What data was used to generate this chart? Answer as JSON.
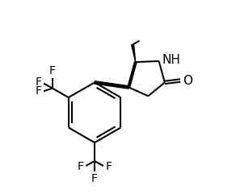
{
  "bg_color": "#ffffff",
  "line_color": "#000000",
  "lw": 1.5,
  "fig_width": 2.92,
  "fig_height": 2.41,
  "dpi": 100,
  "xlim": [
    0,
    10
  ],
  "ylim": [
    0,
    10
  ]
}
